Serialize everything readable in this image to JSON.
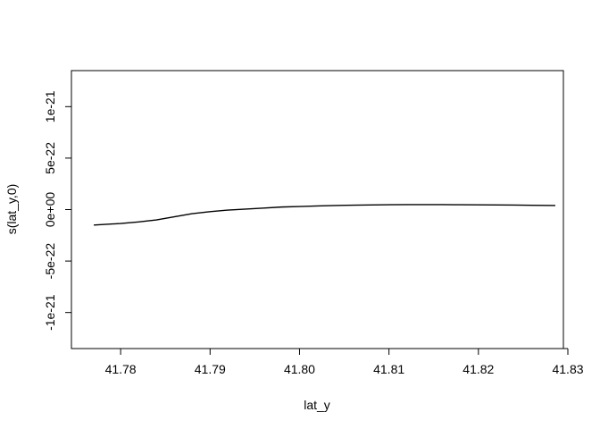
{
  "chart_data": {
    "type": "line",
    "title": "",
    "xlabel": "lat_y",
    "ylabel": "s(lat_y,0)",
    "xlim": [
      41.7745,
      41.8295
    ],
    "ylim": [
      -1.35e-21,
      1.35e-21
    ],
    "x_ticks": [
      41.78,
      41.79,
      41.8,
      41.81,
      41.82,
      41.83
    ],
    "x_tick_labels": [
      "41.78",
      "41.79",
      "41.80",
      "41.81",
      "41.82",
      "41.83"
    ],
    "y_ticks": [
      -1e-21,
      -5e-22,
      0,
      5e-22,
      1e-21
    ],
    "y_tick_labels": [
      "-1e-21",
      "-5e-22",
      "0e+00",
      "5e-22",
      "1e-21"
    ],
    "grid": false,
    "series": [
      {
        "x": [
          41.777,
          41.78,
          41.782,
          41.784,
          41.786,
          41.788,
          41.79,
          41.792,
          41.794,
          41.796,
          41.798,
          41.8,
          41.802,
          41.804,
          41.806,
          41.808,
          41.81,
          41.812,
          41.814,
          41.816,
          41.818,
          41.82,
          41.822,
          41.824,
          41.826,
          41.8286
        ],
        "y": [
          -1.5e-22,
          -1.35e-22,
          -1.2e-22,
          -1e-22,
          -7e-23,
          -4e-23,
          -2e-23,
          -5e-24,
          5e-24,
          1.5e-23,
          2.5e-23,
          3e-23,
          3.5e-23,
          4e-23,
          4.3e-23,
          4.5e-23,
          4.7e-23,
          4.8e-23,
          4.8e-23,
          4.8e-23,
          4.7e-23,
          4.6e-23,
          4.5e-23,
          4.4e-23,
          4.2e-23,
          4e-23
        ]
      }
    ]
  }
}
